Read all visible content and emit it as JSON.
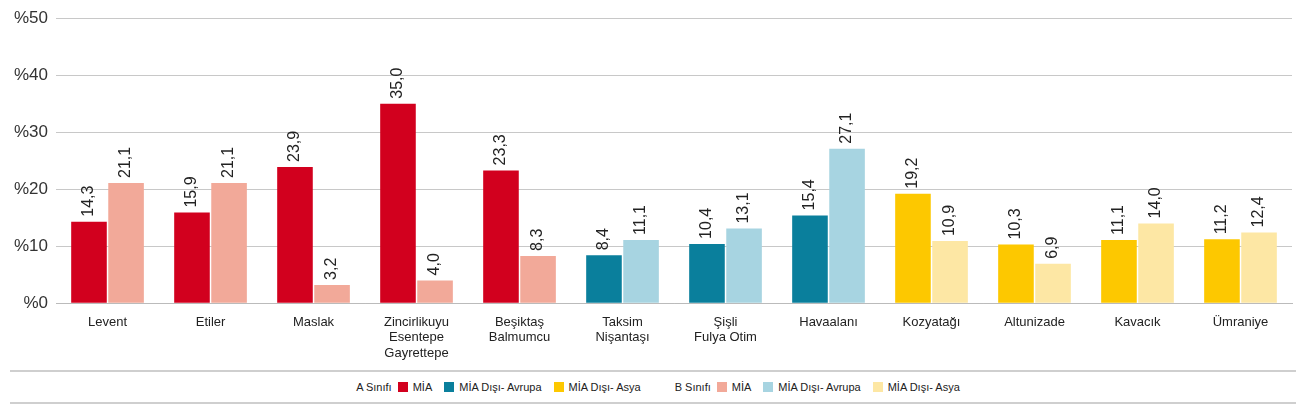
{
  "chart_data": {
    "type": "bar",
    "categories": [
      "Levent",
      "Etiler",
      "Maslak",
      [
        "Zincirlikuyu",
        "Esentepe",
        "Gayrettepe"
      ],
      [
        "Beşiktaş",
        "Balmumcu"
      ],
      [
        "Taksim",
        "Nişantaşı"
      ],
      [
        "Şişli",
        "Fulya Otim"
      ],
      "Havaalanı",
      "Kozyatağı",
      "Altunizade",
      "Kavacık",
      "Ümraniye"
    ],
    "series": [
      {
        "name": "A Sınıfı",
        "values": [
          14.3,
          15.9,
          23.9,
          35.0,
          23.3,
          8.4,
          10.4,
          15.4,
          19.2,
          10.3,
          11.1,
          11.2
        ],
        "value_labels": [
          "14,3",
          "15,9",
          "23,9",
          "35,0",
          "23,3",
          "8,4",
          "10,4",
          "15,4",
          "19,2",
          "10,3",
          "11,1",
          "11,2"
        ],
        "colors": [
          "#d2001e",
          "#d2001e",
          "#d2001e",
          "#d2001e",
          "#d2001e",
          "#0a7f9c",
          "#0a7f9c",
          "#0a7f9c",
          "#fdc800",
          "#fdc800",
          "#fdc800",
          "#fdc800"
        ],
        "legend_items": [
          {
            "name": "MİA",
            "color": "#d2001e"
          },
          {
            "name": "MİA Dışı- Avrupa",
            "color": "#0a7f9c"
          },
          {
            "name": "MİA Dışı- Asya",
            "color": "#fdc800"
          }
        ]
      },
      {
        "name": "B Sınıfı",
        "values": [
          21.1,
          21.1,
          3.2,
          4.0,
          8.3,
          11.1,
          13.1,
          27.1,
          10.9,
          6.9,
          14.0,
          12.4
        ],
        "value_labels": [
          "21,1",
          "21,1",
          "3,2",
          "4,0",
          "8,3",
          "11,1",
          "13,1",
          "27,1",
          "10,9",
          "6,9",
          "14,0",
          "12,4"
        ],
        "colors": [
          "#f2a999",
          "#f2a999",
          "#f2a999",
          "#f2a999",
          "#f2a999",
          "#a7d4e1",
          "#a7d4e1",
          "#a7d4e1",
          "#fde7a4",
          "#fde7a4",
          "#fde7a4",
          "#fde7a4"
        ],
        "legend_items": [
          {
            "name": "MİA",
            "color": "#f2a999"
          },
          {
            "name": "MİA Dışı- Avrupa",
            "color": "#a7d4e1"
          },
          {
            "name": "MİA Dışı- Asya",
            "color": "#fde7a4"
          }
        ]
      }
    ],
    "ylim": [
      0,
      50
    ],
    "yticks": [
      {
        "value": 0,
        "label": "%0"
      },
      {
        "value": 10,
        "label": "%10"
      },
      {
        "value": 20,
        "label": "%20"
      },
      {
        "value": 30,
        "label": "%30"
      },
      {
        "value": 40,
        "label": "%40"
      },
      {
        "value": 50,
        "label": "%50"
      }
    ],
    "grid": true,
    "data_labels": true,
    "legend": "bottom"
  }
}
